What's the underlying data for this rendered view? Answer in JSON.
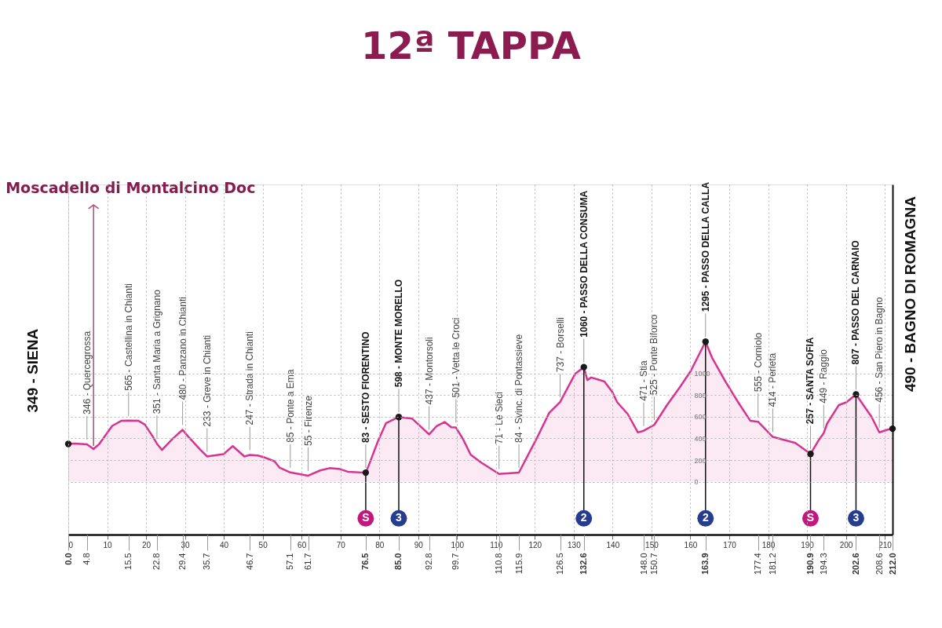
{
  "chart_data": {
    "type": "area",
    "title": "12ª TAPPA",
    "xlim": [
      0,
      212
    ],
    "ylim": [
      -490,
      2750
    ],
    "xticks": [
      0,
      10,
      20,
      30,
      40,
      50,
      60,
      70,
      80,
      90,
      100,
      110,
      120,
      130,
      140,
      150,
      160,
      170,
      180,
      190,
      200,
      210
    ],
    "yticks": [
      0,
      200,
      400,
      600,
      800,
      1000
    ],
    "x2lim": [
      0,
      212
    ],
    "x2ticks": [
      {
        "value": 0,
        "label": "0.0"
      },
      4.8,
      15.5,
      22.8,
      29.4,
      35.7,
      46.7,
      57.1,
      61.7,
      76.5,
      {
        "value": 85,
        "label": "85.0"
      },
      92.8,
      99.7,
      110.8,
      115.9,
      126.5,
      132.6,
      {
        "value": 148,
        "label": "148.0"
      },
      150.7,
      163.9,
      177.4,
      181.2,
      190.9,
      194.3,
      202.6,
      208.6,
      {
        "value": 212,
        "label": "212.0"
      }
    ],
    "grid": true,
    "series": [
      {
        "color": "#d8338e",
        "x": [
          0,
          1.6,
          4.8,
          6.5,
          7.9,
          11.3,
          13.7,
          15.5,
          18.0,
          19.7,
          21.7,
          22.8,
          24.1,
          26.8,
          29.4,
          30.8,
          33.9,
          35.7,
          39.9,
          42.3,
          45.3,
          46.7,
          48.7,
          50.4,
          53.0,
          54.4,
          57.1,
          61.7,
          64.8,
          67.2,
          69.9,
          71.9,
          76.5,
          77.3,
          79.6,
          81.7,
          85.0,
          88.4,
          90.1,
          92.8,
          94.8,
          96.8,
          98.5,
          99.7,
          101.5,
          103.5,
          106.2,
          110.8,
          115.9,
          120.4,
          123.7,
          126.5,
          130.4,
          132.6,
          133.5,
          134.5,
          137.9,
          139.9,
          141.2,
          143.9,
          146.5,
          148.0,
          150.7,
          154.0,
          157.4,
          160.1,
          163.9,
          165.6,
          169.0,
          172.3,
          175.4,
          177.4,
          181.2,
          187.0,
          190.9,
          193.2,
          194.3,
          195.2,
          198.2,
          200.1,
          202.6,
          206.6,
          208.6,
          210.6,
          212.0
        ],
        "values": [
          349,
          353,
          346,
          302,
          346,
          516,
          564,
          565,
          564,
          528,
          419,
          351,
          293,
          395,
          480,
          419,
          298,
          233,
          254,
          329,
          233,
          247,
          242,
          225,
          189,
          128,
          85,
          55,
          104,
          125,
          116,
          92,
          83,
          152,
          371,
          540,
          598,
          584,
          528,
          437,
          516,
          552,
          504,
          501,
          395,
          249,
          177,
          71,
          84,
          395,
          637,
          737,
          1000,
          1060,
          940,
          964,
          927,
          831,
          734,
          625,
          455,
          471,
          525,
          709,
          879,
          1025,
          1295,
          1145,
          927,
          734,
          564,
          555,
          414,
          358,
          257,
          395,
          449,
          540,
          709,
          734,
          807,
          600,
          456,
          480,
          490
        ]
      },
      {
        "type": "scatter",
        "color": "#1a1a1a",
        "marker": "circle",
        "x": [
          0,
          76.5,
          85,
          132.6,
          163.9,
          190.9,
          202.6,
          212
        ],
        "values": [
          349,
          83,
          598,
          1060,
          1295,
          257,
          807,
          490
        ]
      },
      {
        "type": "scatter",
        "color": "#c2187e",
        "marker": "circle",
        "x": [
          76.5,
          190.9
        ],
        "values": [
          -340,
          -340
        ]
      },
      {
        "type": "scatter",
        "color": "#253c8f",
        "marker": "circle",
        "x": [
          85,
          132.6,
          163.9,
          202.6
        ],
        "values": [
          -340,
          -340,
          -340,
          -340
        ]
      }
    ],
    "annotations": [
      {
        "text": "Moscadello di Montalcino Doc",
        "x": 6.5,
        "y": 302
      },
      {
        "text": "349 - SIENA",
        "x": 0,
        "y": 349
      },
      {
        "text": "346 - Quercegrossa",
        "x": 4.8,
        "y": 346
      },
      {
        "text": "565 - Castellina in Chianti",
        "x": 15.5,
        "y": 565
      },
      {
        "text": "351 - Santa Maria a Grignano",
        "x": 22.8,
        "y": 351
      },
      {
        "text": "480 - Panzano in Chianti",
        "x": 29.4,
        "y": 480
      },
      {
        "text": "233 - Greve in Chianti",
        "x": 35.7,
        "y": 233
      },
      {
        "text": "247 - Strada in Chianti",
        "x": 46.7,
        "y": 247
      },
      {
        "text": "85 - Ponte a Ema",
        "x": 57.1,
        "y": 85
      },
      {
        "text": "55 - Firenze",
        "x": 61.7,
        "y": 55
      },
      {
        "text": "83 - SESTO FIORENTINO",
        "x": 76.5,
        "y": 83
      },
      {
        "text": "598 - MONTE MORELLO",
        "x": 85,
        "y": 598
      },
      {
        "text": "437 - Montorsoli",
        "x": 92.8,
        "y": 437
      },
      {
        "text": "501 - Vetta le Croci",
        "x": 99.7,
        "y": 501
      },
      {
        "text": "71 - Le Sieci",
        "x": 110.8,
        "y": 71
      },
      {
        "text": "84 - Svinc. di Pontassieve",
        "x": 115.9,
        "y": 84
      },
      {
        "text": "737 - Borselli",
        "x": 126.5,
        "y": 737
      },
      {
        "text": "1060 - PASSO DELLA CONSUMA",
        "x": 132.6,
        "y": 1060
      },
      {
        "text": "471 - Stia",
        "x": 148,
        "y": 471
      },
      {
        "text": "525 - Ponte Biforco",
        "x": 150.7,
        "y": 525
      },
      {
        "text": "1295 - PASSO DELLA CALLA",
        "x": 163.9,
        "y": 1295
      },
      {
        "text": "555 - Corniolo",
        "x": 177.4,
        "y": 555
      },
      {
        "text": "414 - Perleta",
        "x": 181.2,
        "y": 414
      },
      {
        "text": "257 - SANTA SOFIA",
        "x": 190.9,
        "y": 257
      },
      {
        "text": "449 - Raggio",
        "x": 194.3,
        "y": 449
      },
      {
        "text": "807 - PASSO DEL CARNAIO",
        "x": 202.6,
        "y": 807
      },
      {
        "text": "456 - San Piero in Bagno",
        "x": 208.6,
        "y": 456
      },
      {
        "text": "490 - BAGNO DI ROMAGNA",
        "x": 212,
        "y": 490
      },
      {
        "text": "S",
        "x": 76.5,
        "y": -340
      },
      {
        "text": "3",
        "x": 85,
        "y": -340
      },
      {
        "text": "2",
        "x": 132.6,
        "y": -340
      },
      {
        "text": "2",
        "x": 163.9,
        "y": -340
      },
      {
        "text": "S",
        "x": 190.9,
        "y": -340
      },
      {
        "text": "3",
        "x": 202.6,
        "y": -340
      }
    ]
  }
}
